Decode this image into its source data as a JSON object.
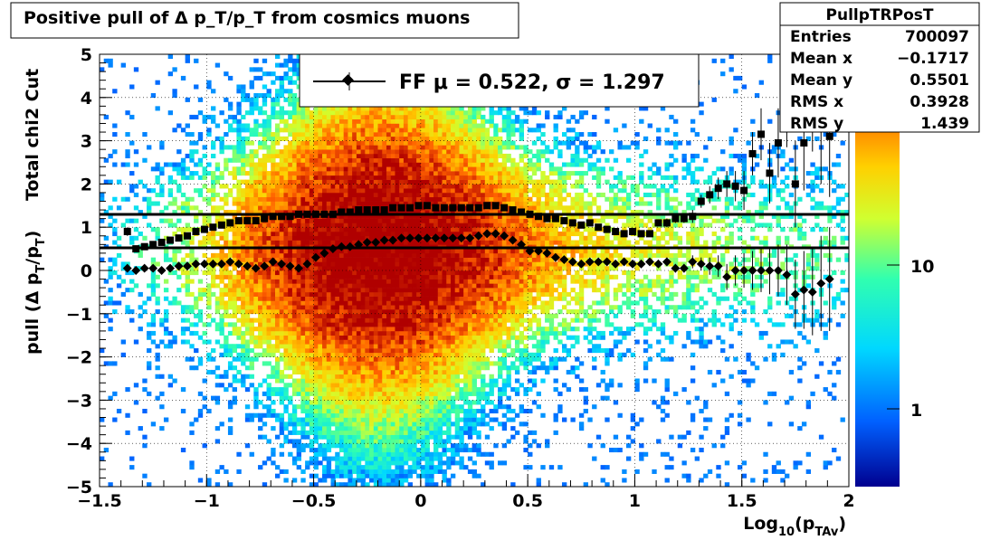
{
  "title": "Positive pull of Δ p_T/p_T from cosmics muons",
  "chart_data": {
    "type": "heatmap",
    "title": "Positive pull of Δ p_T/p_T from cosmics muons",
    "xlabel": "Log10(pTAv)",
    "ylabel": "pull (Δ pT/pT)",
    "ylabel_extra": "Total chi2 Cut",
    "xlim": [
      -1.5,
      2
    ],
    "ylim": [
      -5,
      5
    ],
    "xticks": [
      "−1.5",
      "−1",
      "−0.5",
      "0",
      "0.5",
      "1",
      "1.5",
      "2"
    ],
    "yticks": [
      "5",
      "4",
      "3",
      "2",
      "1",
      "0",
      "−1",
      "−2",
      "−3",
      "−4",
      "−5"
    ],
    "grid": true,
    "legend_placement": "top-center",
    "colorbar": {
      "scale": "log",
      "ticks": [
        "10",
        "1"
      ],
      "colors": [
        "#00008f",
        "#0060ff",
        "#00d8ff",
        "#30ffb0",
        "#d0ff30",
        "#ffd000",
        "#ff6000",
        "#b00000"
      ]
    },
    "fit_lines": [
      {
        "name": "FF",
        "mu": 0.522,
        "sigma": 1.297,
        "mu_label": "FF μ =  0.522, σ =   1.297"
      }
    ],
    "series": [
      {
        "marker": "diamond",
        "x": [
          -1.37,
          -1.33,
          -1.29,
          -1.25,
          -1.21,
          -1.17,
          -1.13,
          -1.09,
          -1.05,
          -1.01,
          -0.97,
          -0.93,
          -0.89,
          -0.85,
          -0.81,
          -0.77,
          -0.73,
          -0.69,
          -0.65,
          -0.61,
          -0.57,
          -0.53,
          -0.49,
          -0.45,
          -0.41,
          -0.37,
          -0.33,
          -0.29,
          -0.25,
          -0.21,
          -0.17,
          -0.13,
          -0.09,
          -0.05,
          -0.01,
          0.03,
          0.07,
          0.11,
          0.15,
          0.19,
          0.23,
          0.27,
          0.31,
          0.35,
          0.39,
          0.43,
          0.47,
          0.51,
          0.55,
          0.59,
          0.63,
          0.67,
          0.71,
          0.75,
          0.79,
          0.83,
          0.87,
          0.91,
          0.95,
          0.99,
          1.03,
          1.07,
          1.11,
          1.15,
          1.19,
          1.23,
          1.27,
          1.31,
          1.35,
          1.39,
          1.43,
          1.47,
          1.51,
          1.55,
          1.59,
          1.63,
          1.67,
          1.71,
          1.75,
          1.79,
          1.83,
          1.87,
          1.91
        ],
        "y": [
          0.05,
          0.0,
          0.05,
          0.05,
          0.0,
          0.05,
          0.1,
          0.1,
          0.15,
          0.15,
          0.15,
          0.15,
          0.2,
          0.15,
          0.1,
          0.05,
          0.1,
          0.2,
          0.15,
          0.1,
          0.05,
          0.15,
          0.3,
          0.4,
          0.5,
          0.55,
          0.55,
          0.6,
          0.65,
          0.65,
          0.7,
          0.7,
          0.75,
          0.75,
          0.75,
          0.75,
          0.75,
          0.75,
          0.75,
          0.75,
          0.75,
          0.8,
          0.85,
          0.85,
          0.8,
          0.7,
          0.6,
          0.45,
          0.45,
          0.4,
          0.3,
          0.25,
          0.2,
          0.15,
          0.2,
          0.2,
          0.2,
          0.15,
          0.2,
          0.15,
          0.15,
          0.2,
          0.15,
          0.2,
          0.05,
          0.05,
          0.2,
          0.15,
          0.1,
          0.1,
          -0.15,
          0.0,
          0.0,
          0.0,
          0.0,
          0.0,
          0.0,
          -0.1,
          -0.55,
          -0.45,
          -0.5,
          -0.3,
          -0.2
        ],
        "yerr": [
          0.05,
          0.05,
          0.05,
          0.05,
          0.05,
          0.05,
          0.05,
          0.05,
          0.05,
          0.05,
          0.05,
          0.05,
          0.05,
          0.05,
          0.05,
          0.05,
          0.05,
          0.05,
          0.05,
          0.05,
          0.05,
          0.05,
          0.05,
          0.05,
          0.05,
          0.05,
          0.05,
          0.05,
          0.05,
          0.05,
          0.05,
          0.05,
          0.05,
          0.05,
          0.05,
          0.05,
          0.05,
          0.05,
          0.05,
          0.05,
          0.05,
          0.05,
          0.05,
          0.05,
          0.05,
          0.05,
          0.05,
          0.05,
          0.05,
          0.05,
          0.05,
          0.05,
          0.05,
          0.05,
          0.05,
          0.05,
          0.05,
          0.05,
          0.05,
          0.05,
          0.05,
          0.05,
          0.05,
          0.1,
          0.1,
          0.1,
          0.15,
          0.15,
          0.2,
          0.25,
          0.3,
          0.35,
          0.4,
          0.45,
          0.5,
          0.55,
          0.6,
          0.7,
          0.8,
          0.9,
          1.0,
          1.1,
          1.2
        ]
      },
      {
        "marker": "square",
        "x": [
          -1.37,
          -1.33,
          -1.29,
          -1.25,
          -1.21,
          -1.17,
          -1.13,
          -1.09,
          -1.05,
          -1.01,
          -0.97,
          -0.93,
          -0.89,
          -0.85,
          -0.81,
          -0.77,
          -0.73,
          -0.69,
          -0.65,
          -0.61,
          -0.57,
          -0.53,
          -0.49,
          -0.45,
          -0.41,
          -0.37,
          -0.33,
          -0.29,
          -0.25,
          -0.21,
          -0.17,
          -0.13,
          -0.09,
          -0.05,
          -0.01,
          0.03,
          0.07,
          0.11,
          0.15,
          0.19,
          0.23,
          0.27,
          0.31,
          0.35,
          0.39,
          0.43,
          0.47,
          0.51,
          0.55,
          0.59,
          0.63,
          0.67,
          0.71,
          0.75,
          0.79,
          0.83,
          0.87,
          0.91,
          0.95,
          0.99,
          1.03,
          1.07,
          1.11,
          1.15,
          1.19,
          1.23,
          1.27,
          1.31,
          1.35,
          1.39,
          1.43,
          1.47,
          1.51,
          1.55,
          1.59,
          1.63,
          1.67,
          1.71,
          1.75,
          1.79,
          1.83,
          1.87,
          1.91
        ],
        "y": [
          0.9,
          0.5,
          0.55,
          0.6,
          0.65,
          0.7,
          0.75,
          0.8,
          0.9,
          0.95,
          1.0,
          1.05,
          1.1,
          1.15,
          1.15,
          1.15,
          1.2,
          1.25,
          1.25,
          1.25,
          1.3,
          1.3,
          1.3,
          1.3,
          1.3,
          1.35,
          1.35,
          1.4,
          1.4,
          1.4,
          1.4,
          1.45,
          1.45,
          1.45,
          1.5,
          1.5,
          1.45,
          1.45,
          1.45,
          1.45,
          1.45,
          1.45,
          1.5,
          1.5,
          1.45,
          1.4,
          1.35,
          1.3,
          1.25,
          1.2,
          1.2,
          1.15,
          1.1,
          1.05,
          1.1,
          1.0,
          0.95,
          0.9,
          0.85,
          0.9,
          0.85,
          0.85,
          1.1,
          1.1,
          1.2,
          1.2,
          1.25,
          1.6,
          1.75,
          1.9,
          2.0,
          1.95,
          1.85,
          2.7,
          3.15,
          2.25,
          2.95,
          3.75,
          2.0,
          2.95,
          3.95,
          3.3,
          3.1
        ],
        "yerr": [
          0.1,
          0.05,
          0.05,
          0.05,
          0.05,
          0.05,
          0.05,
          0.05,
          0.05,
          0.05,
          0.05,
          0.05,
          0.05,
          0.05,
          0.05,
          0.05,
          0.05,
          0.05,
          0.05,
          0.05,
          0.05,
          0.05,
          0.05,
          0.05,
          0.05,
          0.05,
          0.05,
          0.05,
          0.05,
          0.05,
          0.05,
          0.05,
          0.05,
          0.05,
          0.05,
          0.05,
          0.05,
          0.05,
          0.05,
          0.05,
          0.05,
          0.05,
          0.05,
          0.05,
          0.05,
          0.05,
          0.05,
          0.05,
          0.05,
          0.05,
          0.05,
          0.05,
          0.05,
          0.05,
          0.05,
          0.05,
          0.05,
          0.05,
          0.05,
          0.05,
          0.05,
          0.05,
          0.05,
          0.1,
          0.1,
          0.1,
          0.15,
          0.15,
          0.2,
          0.25,
          0.3,
          0.35,
          0.45,
          0.5,
          0.6,
          0.7,
          0.8,
          0.9,
          1.0,
          1.1,
          1.2,
          1.3,
          1.4
        ]
      }
    ]
  },
  "stats": {
    "name": "PullpTRPosT",
    "rows": [
      {
        "label": "Entries",
        "value": "700097"
      },
      {
        "label": "Mean x",
        "value": "−0.1717"
      },
      {
        "label": "Mean y",
        "value": "0.5501"
      },
      {
        "label": "RMS x",
        "value": "0.3928"
      },
      {
        "label": "RMS y",
        "value": "1.439"
      }
    ]
  },
  "legend": {
    "label": "FF μ =  0.522, σ =   1.297"
  }
}
